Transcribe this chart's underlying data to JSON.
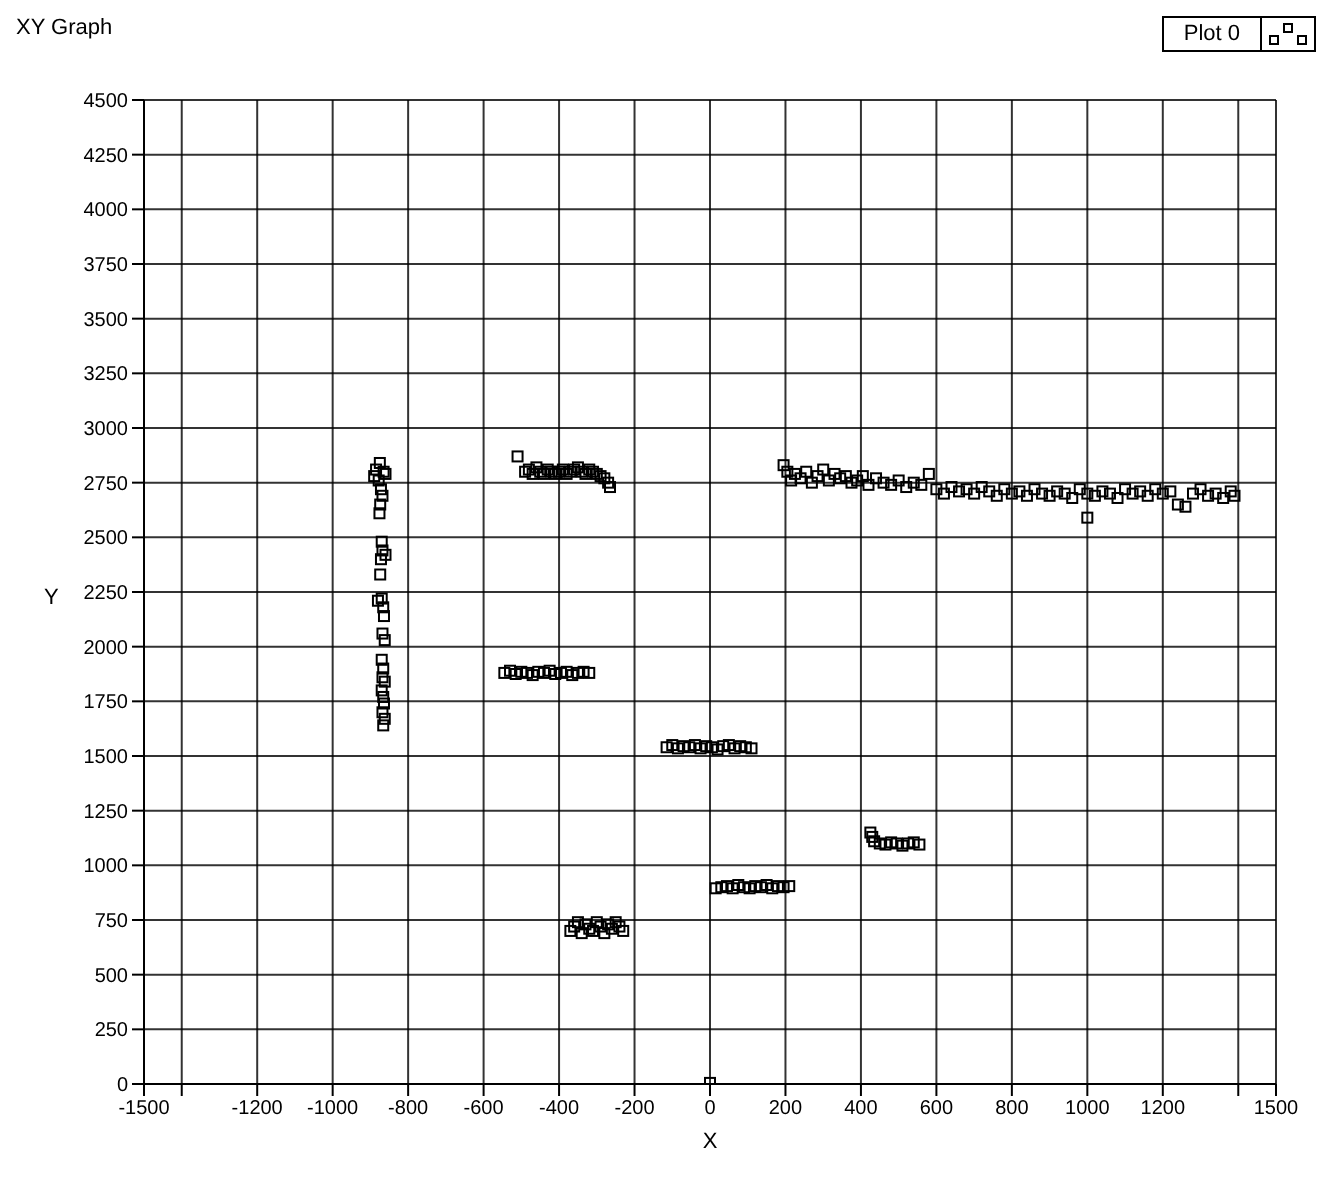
{
  "chart_data": {
    "type": "scatter",
    "title": "XY Graph",
    "xlabel": "X",
    "ylabel": "Y",
    "marker": "square",
    "grid": true,
    "legend": "top right",
    "xlim": [
      -1500,
      1500
    ],
    "xticks": [
      -1500,
      {
        "value": -1400,
        "label": null
      },
      -1200,
      -1000,
      -800,
      -600,
      -400,
      -200,
      0,
      200,
      400,
      600,
      800,
      1000,
      1200,
      {
        "value": 1400,
        "label": null
      },
      1500
    ],
    "ylim": [
      0,
      4500
    ],
    "yticks": [
      0,
      250,
      500,
      750,
      1000,
      1250,
      1500,
      1750,
      2000,
      2250,
      2500,
      2750,
      3000,
      3250,
      3500,
      3750,
      4000,
      4250,
      4500
    ],
    "series": [
      {
        "name": "Plot 0",
        "color": "#000000",
        "x": [
          -875,
          -885,
          -865,
          -890,
          -860,
          -878,
          -872,
          -868,
          -874,
          -876,
          -870,
          -868,
          -860,
          -872,
          -874,
          -870,
          -880,
          -866,
          -864,
          -868,
          -862,
          -870,
          -866,
          -868,
          -862,
          -870,
          -866,
          -864,
          -868,
          -862,
          -866,
          -510,
          -490,
          -480,
          -470,
          -460,
          -450,
          -440,
          -430,
          -420,
          -410,
          -400,
          -390,
          -380,
          -370,
          -360,
          -350,
          -340,
          -330,
          -320,
          -310,
          -300,
          -290,
          -280,
          -270,
          -265,
          -545,
          -530,
          -515,
          -500,
          -485,
          -470,
          -455,
          -440,
          -425,
          -410,
          -395,
          -380,
          -365,
          -350,
          -335,
          -320,
          -370,
          -360,
          -350,
          -340,
          -330,
          -320,
          -310,
          -300,
          -290,
          -280,
          -270,
          -260,
          -250,
          -240,
          -230,
          -115,
          -100,
          -85,
          -70,
          -55,
          -40,
          -25,
          -10,
          5,
          20,
          35,
          50,
          65,
          80,
          95,
          110,
          15,
          30,
          45,
          60,
          75,
          90,
          105,
          120,
          135,
          150,
          165,
          180,
          195,
          210,
          425,
          430,
          435,
          450,
          465,
          480,
          495,
          510,
          525,
          540,
          555,
          195,
          205,
          215,
          225,
          240,
          255,
          270,
          285,
          300,
          315,
          330,
          345,
          360,
          375,
          390,
          405,
          420,
          440,
          460,
          480,
          500,
          520,
          540,
          560,
          580,
          600,
          620,
          640,
          660,
          680,
          700,
          720,
          740,
          760,
          780,
          800,
          820,
          840,
          860,
          880,
          900,
          920,
          940,
          960,
          980,
          1000,
          1000,
          1020,
          1040,
          1060,
          1080,
          1100,
          1120,
          1140,
          1160,
          1180,
          1200,
          1220,
          1240,
          1260,
          1280,
          1300,
          1320,
          1340,
          1360,
          1380,
          1390,
          0
        ],
        "values": [
          2840,
          2810,
          2800,
          2780,
          2790,
          2760,
          2720,
          2690,
          2650,
          2610,
          2480,
          2440,
          2420,
          2400,
          2330,
          2220,
          2210,
          2180,
          2140,
          2060,
          2030,
          1940,
          1900,
          1860,
          1840,
          1800,
          1770,
          1740,
          1700,
          1670,
          1640,
          2870,
          2800,
          2810,
          2790,
          2820,
          2800,
          2790,
          2810,
          2800,
          2790,
          2800,
          2810,
          2790,
          2800,
          2810,
          2820,
          2800,
          2790,
          2810,
          2800,
          2790,
          2780,
          2770,
          2750,
          2730,
          1880,
          1890,
          1875,
          1885,
          1880,
          1870,
          1885,
          1880,
          1890,
          1875,
          1880,
          1885,
          1870,
          1880,
          1885,
          1880,
          700,
          720,
          740,
          690,
          730,
          710,
          700,
          740,
          720,
          690,
          730,
          710,
          740,
          720,
          700,
          1540,
          1550,
          1535,
          1545,
          1540,
          1550,
          1535,
          1545,
          1540,
          1530,
          1545,
          1550,
          1535,
          1545,
          1540,
          1535,
          895,
          900,
          905,
          895,
          910,
          900,
          895,
          905,
          900,
          910,
          895,
          905,
          900,
          905,
          1150,
          1130,
          1110,
          1100,
          1095,
          1105,
          1100,
          1090,
          1100,
          1105,
          1095,
          2830,
          2800,
          2760,
          2790,
          2770,
          2800,
          2750,
          2780,
          2810,
          2760,
          2790,
          2770,
          2780,
          2750,
          2760,
          2780,
          2740,
          2770,
          2750,
          2740,
          2760,
          2730,
          2750,
          2740,
          2790,
          2720,
          2700,
          2730,
          2710,
          2720,
          2700,
          2730,
          2710,
          2690,
          2720,
          2700,
          2710,
          2690,
          2720,
          2700,
          2690,
          2710,
          2700,
          2680,
          2720,
          2700,
          2590,
          2690,
          2710,
          2700,
          2680,
          2720,
          2700,
          2710,
          2690,
          2720,
          2700,
          2710,
          2650,
          2640,
          2700,
          2720,
          2690,
          2700,
          2680,
          2710,
          2690,
          5
        ]
      }
    ]
  }
}
